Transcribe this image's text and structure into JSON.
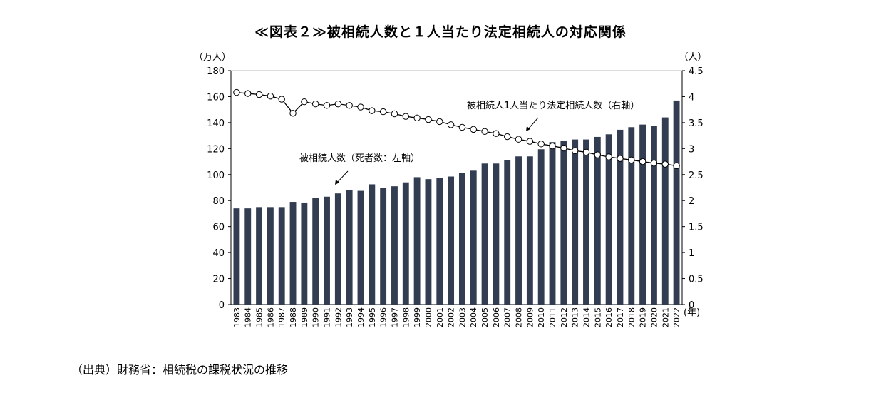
{
  "title": "≪図表２≫被相続人数と１人当たり法定相続人の対応関係",
  "source": "（出典）財務省：相続税の課税状況の推移",
  "chart_data": {
    "type": "bar",
    "left_axis_unit": "（万人）",
    "right_axis_unit": "（人）",
    "x_unit": "(年)",
    "left_ylim": [
      0,
      180
    ],
    "right_ylim": [
      0,
      4.5
    ],
    "left_ticks": [
      "0",
      "20",
      "40",
      "60",
      "80",
      "100",
      "120",
      "140",
      "160",
      "180"
    ],
    "right_ticks": [
      "0",
      "0.5",
      "1",
      "1.5",
      "2",
      "2.5",
      "3",
      "3.5",
      "4",
      "4.5"
    ],
    "grid": false,
    "categories": [
      "1983",
      "1984",
      "1985",
      "1986",
      "1987",
      "1988",
      "1989",
      "1990",
      "1991",
      "1992",
      "1993",
      "1994",
      "1995",
      "1996",
      "1997",
      "1998",
      "1999",
      "2000",
      "2001",
      "2002",
      "2003",
      "2004",
      "2005",
      "2006",
      "2007",
      "2008",
      "2009",
      "2010",
      "2011",
      "2012",
      "2013",
      "2014",
      "2015",
      "2016",
      "2017",
      "2018",
      "2019",
      "2020",
      "2021",
      "2022"
    ],
    "series": [
      {
        "type": "bar",
        "axis": "left",
        "color": "#323d52",
        "values": [
          74,
          74,
          75,
          75,
          75,
          79,
          78.5,
          82,
          83,
          85.5,
          88,
          87.5,
          92.5,
          89.5,
          91,
          94,
          98,
          96.5,
          97.5,
          98.5,
          101.5,
          103,
          108.5,
          108.5,
          111,
          114,
          114,
          119.5,
          125,
          126,
          127,
          127,
          129,
          131,
          134.5,
          136.5,
          138.5,
          137.5,
          144,
          157
        ]
      },
      {
        "type": "line",
        "axis": "right",
        "color": "#000000",
        "values": [
          4.08,
          4.06,
          4.04,
          4.01,
          3.95,
          3.68,
          3.9,
          3.86,
          3.83,
          3.86,
          3.83,
          3.8,
          3.73,
          3.71,
          3.67,
          3.62,
          3.59,
          3.56,
          3.52,
          3.46,
          3.41,
          3.37,
          3.33,
          3.29,
          3.23,
          3.18,
          3.14,
          3.09,
          3.05,
          3.01,
          2.96,
          2.93,
          2.88,
          2.84,
          2.81,
          2.78,
          2.75,
          2.72,
          2.7,
          2.67
        ]
      }
    ],
    "annotations": [
      {
        "text": "被相続人数（死者数：左軸）"
      },
      {
        "text": "被相続人1人当たり法定相続人数（右軸）"
      }
    ]
  }
}
